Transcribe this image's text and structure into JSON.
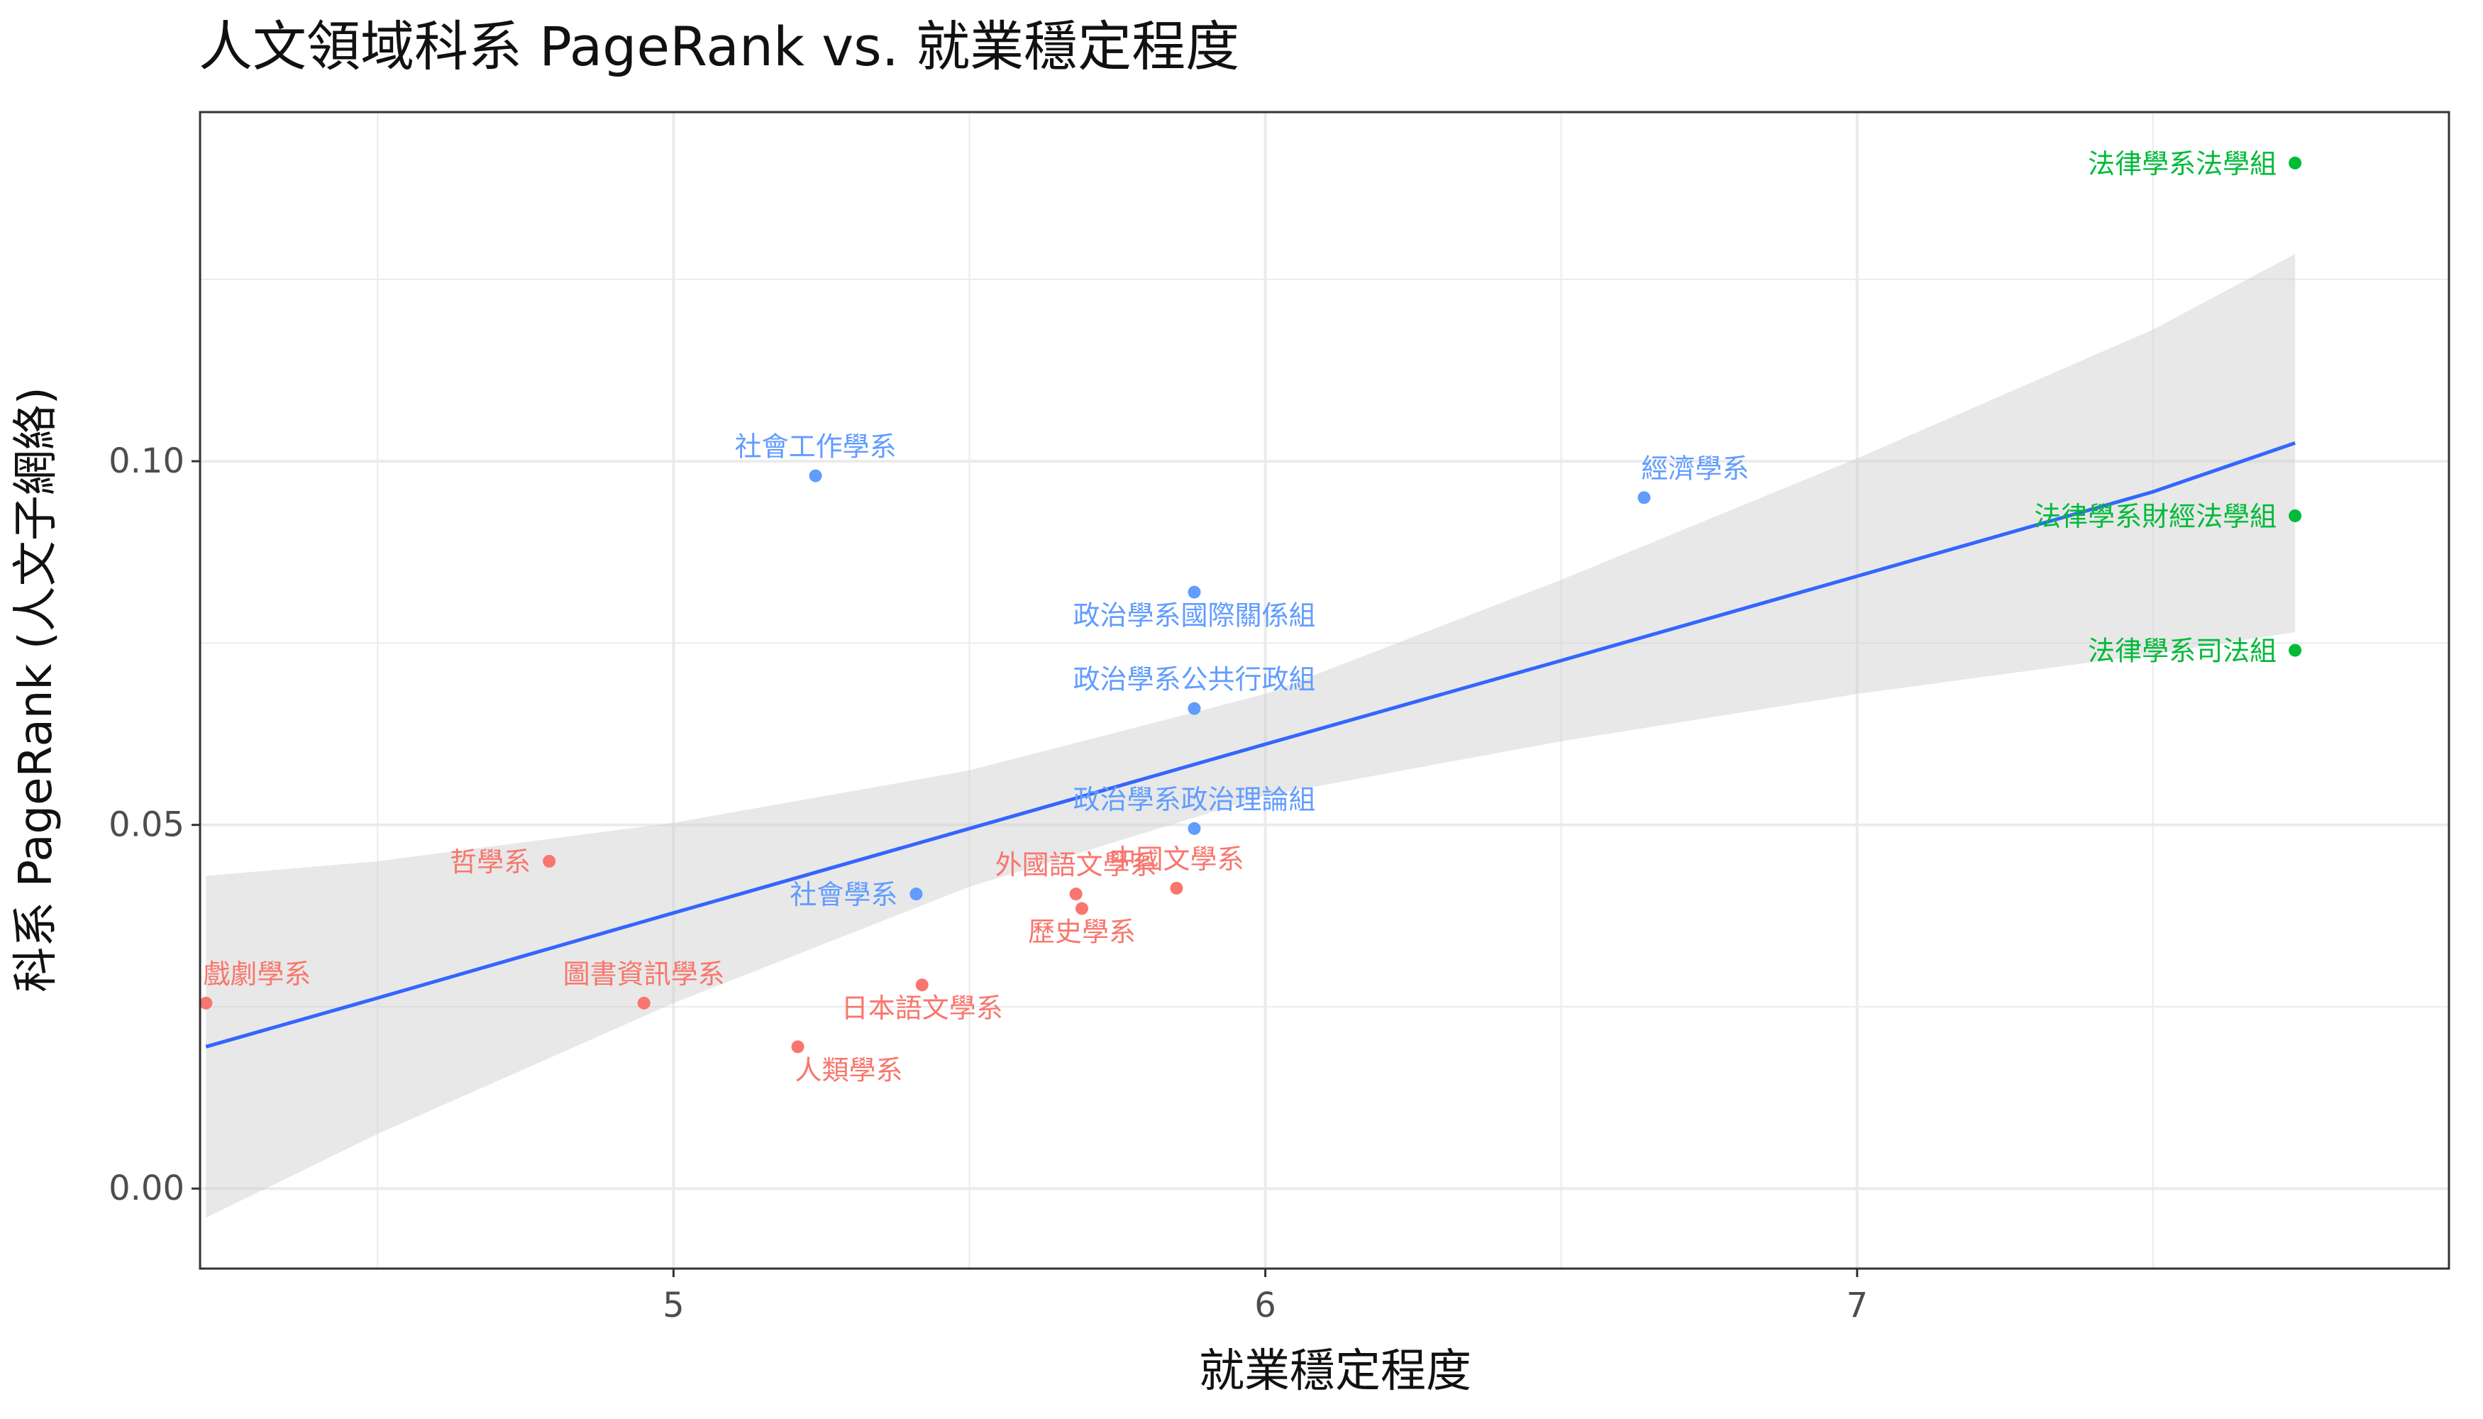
{
  "chart_data": {
    "type": "scatter",
    "title": "人文領域科系 PageRank vs. 就業穩定程度",
    "xlabel": "就業穩定程度",
    "ylabel": "科系 PageRank (人文子網絡)",
    "xlim": [
      4.2,
      8.0
    ],
    "ylim": [
      -0.011,
      0.148
    ],
    "x_ticks": [
      {
        "value": 5,
        "label": "5"
      },
      {
        "value": 6,
        "label": "6"
      },
      {
        "value": 7,
        "label": "7"
      }
    ],
    "y_ticks": [
      {
        "value": 0.0,
        "label": "0.00"
      },
      {
        "value": 0.05,
        "label": "0.05"
      },
      {
        "value": 0.1,
        "label": "0.10"
      }
    ],
    "minor_x": [
      4.5,
      5.5,
      6.5,
      7.5
    ],
    "minor_y": [
      0.025,
      0.075,
      0.125
    ],
    "grid": true,
    "legend": "none",
    "colors": {
      "red": "#F8766D",
      "blue": "#619CFF",
      "green": "#00BA38",
      "fit_line": "#3366FF",
      "ribbon": "#CCCCCC",
      "grid": "#EBEBEB",
      "panel_border": "#333333"
    },
    "points": [
      {
        "label": "法律學系法學組",
        "x": 7.74,
        "y": 0.141,
        "color": "green",
        "label_anchor": "end"
      },
      {
        "label": "法律學系財經法學組",
        "x": 7.74,
        "y": 0.0925,
        "color": "green",
        "label_anchor": "end"
      },
      {
        "label": "法律學系司法組",
        "x": 7.74,
        "y": 0.074,
        "color": "green",
        "label_anchor": "end"
      },
      {
        "label": "經濟學系",
        "x": 6.64,
        "y": 0.095,
        "color": "blue",
        "label_anchor": "start",
        "label_side": "above"
      },
      {
        "label": "社會工作學系",
        "x": 5.24,
        "y": 0.098,
        "color": "blue",
        "label_anchor": "middle",
        "label_side": "above"
      },
      {
        "label": "政治學系國際關係組",
        "x": 5.88,
        "y": 0.082,
        "color": "blue",
        "label_anchor": "middle",
        "label_side": "below"
      },
      {
        "label": "政治學系公共行政組",
        "x": 5.88,
        "y": 0.066,
        "color": "blue",
        "label_anchor": "middle",
        "label_side": "above"
      },
      {
        "label": "政治學系政治理論組",
        "x": 5.88,
        "y": 0.0495,
        "color": "blue",
        "label_anchor": "middle",
        "label_side": "above"
      },
      {
        "label": "社會學系",
        "x": 5.41,
        "y": 0.0405,
        "color": "blue",
        "label_anchor": "end",
        "label_side": "below"
      },
      {
        "label": "外國語文學系",
        "x": 5.68,
        "y": 0.0405,
        "color": "red",
        "label_anchor": "middle",
        "label_side": "above"
      },
      {
        "label": "歷史學系",
        "x": 5.69,
        "y": 0.0385,
        "color": "red",
        "label_anchor": "middle",
        "label_side": "below"
      },
      {
        "label": "中國文學系",
        "x": 5.85,
        "y": 0.0413,
        "color": "red",
        "label_anchor": "middle",
        "label_side": "above"
      },
      {
        "label": "哲學系",
        "x": 4.79,
        "y": 0.045,
        "color": "red",
        "label_anchor": "end",
        "label_side": "below"
      },
      {
        "label": "圖書資訊學系",
        "x": 4.95,
        "y": 0.0255,
        "color": "red",
        "label_anchor": "middle",
        "label_side": "above"
      },
      {
        "label": "戲劇學系",
        "x": 4.21,
        "y": 0.0255,
        "color": "red",
        "label_anchor": "start",
        "label_side": "above"
      },
      {
        "label": "日本語文學系",
        "x": 5.42,
        "y": 0.028,
        "color": "red",
        "label_anchor": "middle",
        "label_side": "below"
      },
      {
        "label": "人類學系",
        "x": 5.21,
        "y": 0.0195,
        "color": "red",
        "label_anchor": "start",
        "label_side": "below"
      }
    ],
    "fit": {
      "x": [
        4.21,
        4.5,
        5.0,
        5.5,
        6.0,
        6.5,
        7.0,
        7.5,
        7.74
      ],
      "y": [
        0.0195,
        0.0262,
        0.0379,
        0.0495,
        0.0611,
        0.0726,
        0.0842,
        0.0958,
        0.1025
      ],
      "lower": [
        -0.004,
        0.0075,
        0.0255,
        0.0415,
        0.054,
        0.0615,
        0.068,
        0.0735,
        0.0765
      ],
      "upper": [
        0.043,
        0.045,
        0.0503,
        0.0575,
        0.068,
        0.0837,
        0.1004,
        0.1181,
        0.1285
      ]
    }
  }
}
